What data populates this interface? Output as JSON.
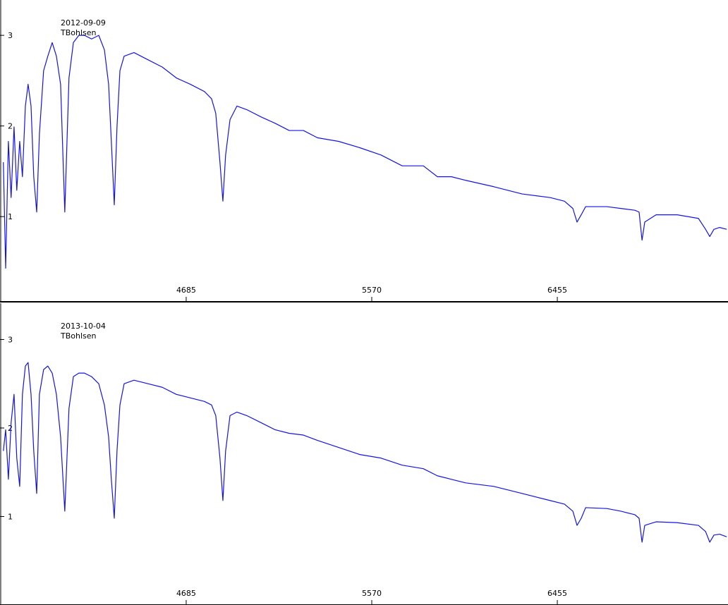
{
  "chart_data": [
    {
      "type": "line",
      "annotations": [
        "2012-09-09",
        "TBohlsen"
      ],
      "x": [
        3813,
        3824,
        3837,
        3850,
        3864,
        3877,
        3891,
        3904,
        3918,
        3931,
        3945,
        3958,
        3972,
        3985,
        4005,
        4025,
        4046,
        4066,
        4086,
        4106,
        4126,
        4147,
        4173,
        4200,
        4234,
        4268,
        4295,
        4315,
        4328,
        4342,
        4355,
        4369,
        4389,
        4436,
        4503,
        4571,
        4638,
        4705,
        4772,
        4806,
        4826,
        4846,
        4860,
        4873,
        4894,
        4927,
        4974,
        5042,
        5109,
        5176,
        5244,
        5311,
        5412,
        5513,
        5614,
        5715,
        5816,
        5883,
        5950,
        6018,
        6152,
        6287,
        6421,
        6489,
        6529,
        6549,
        6569,
        6590,
        6691,
        6758,
        6825,
        6845,
        6859,
        6872,
        6926,
        7027,
        7128,
        7162,
        7182,
        7202,
        7229,
        7263
      ],
      "series": [
        {
          "color": "#1414e6",
          "values": [
            1.6,
            0.43,
            1.83,
            1.21,
            1.99,
            1.29,
            1.83,
            1.44,
            2.22,
            2.46,
            2.22,
            1.44,
            1.05,
            1.91,
            2.61,
            2.77,
            2.92,
            2.77,
            2.46,
            1.05,
            2.53,
            2.92,
            3.0,
            3.0,
            2.96,
            3.0,
            2.84,
            2.46,
            1.83,
            1.13,
            1.99,
            2.61,
            2.77,
            2.81,
            2.73,
            2.65,
            2.53,
            2.46,
            2.38,
            2.3,
            2.14,
            1.6,
            1.17,
            1.68,
            2.07,
            2.22,
            2.18,
            2.1,
            2.03,
            1.95,
            1.95,
            1.87,
            1.83,
            1.76,
            1.68,
            1.56,
            1.56,
            1.44,
            1.44,
            1.4,
            1.33,
            1.25,
            1.21,
            1.17,
            1.09,
            0.94,
            1.02,
            1.11,
            1.11,
            1.09,
            1.07,
            1.05,
            0.74,
            0.94,
            1.02,
            1.02,
            0.98,
            0.86,
            0.78,
            0.86,
            0.88,
            0.86
          ]
        }
      ],
      "xlim": [
        3797,
        7269
      ],
      "ylim": [
        0.06,
        3.39
      ],
      "xticks": [
        4685,
        5570,
        6455
      ],
      "yticks": [
        1,
        2,
        3
      ]
    },
    {
      "type": "line",
      "annotations": [
        "2013-10-04",
        "TBohlsen"
      ],
      "x": [
        3813,
        3824,
        3837,
        3850,
        3864,
        3877,
        3891,
        3904,
        3918,
        3931,
        3945,
        3958,
        3972,
        3985,
        4005,
        4025,
        4046,
        4066,
        4086,
        4106,
        4126,
        4147,
        4173,
        4200,
        4234,
        4268,
        4295,
        4315,
        4328,
        4342,
        4355,
        4369,
        4389,
        4436,
        4503,
        4571,
        4638,
        4705,
        4772,
        4806,
        4826,
        4846,
        4860,
        4873,
        4894,
        4927,
        4974,
        5042,
        5109,
        5176,
        5244,
        5311,
        5412,
        5513,
        5614,
        5715,
        5816,
        5883,
        5950,
        6018,
        6152,
        6287,
        6421,
        6489,
        6529,
        6549,
        6569,
        6590,
        6691,
        6758,
        6825,
        6845,
        6859,
        6872,
        6926,
        7027,
        7128,
        7162,
        7182,
        7202,
        7229,
        7263
      ],
      "series": [
        {
          "color": "#1414e6",
          "values": [
            1.74,
            1.98,
            1.42,
            2.06,
            2.38,
            1.66,
            1.34,
            2.38,
            2.7,
            2.74,
            2.38,
            1.74,
            1.26,
            2.38,
            2.66,
            2.7,
            2.62,
            2.38,
            1.9,
            1.06,
            2.22,
            2.58,
            2.62,
            2.62,
            2.58,
            2.5,
            2.26,
            1.9,
            1.42,
            0.98,
            1.74,
            2.26,
            2.5,
            2.54,
            2.5,
            2.46,
            2.38,
            2.34,
            2.3,
            2.26,
            2.14,
            1.66,
            1.18,
            1.74,
            2.14,
            2.18,
            2.14,
            2.06,
            1.98,
            1.94,
            1.92,
            1.86,
            1.78,
            1.7,
            1.66,
            1.58,
            1.54,
            1.46,
            1.42,
            1.38,
            1.34,
            1.26,
            1.18,
            1.14,
            1.06,
            0.9,
            0.98,
            1.1,
            1.09,
            1.06,
            1.02,
            0.98,
            0.71,
            0.9,
            0.94,
            0.93,
            0.9,
            0.83,
            0.71,
            0.79,
            0.8,
            0.77
          ]
        }
      ],
      "xlim": [
        3797,
        7269
      ],
      "ylim": [
        0,
        3.41
      ],
      "xticks": [
        4685,
        5570,
        6455
      ],
      "yticks": [
        1,
        2,
        3
      ]
    }
  ]
}
